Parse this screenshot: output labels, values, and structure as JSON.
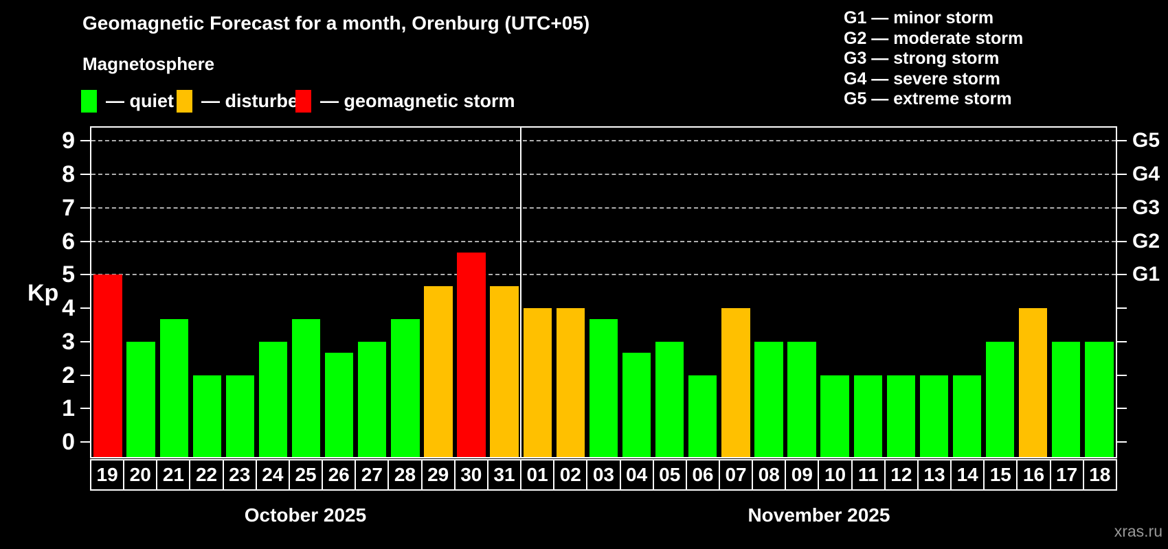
{
  "title": "Geomagnetic Forecast for a month, Orenburg (UTC+05)",
  "subtitle": "Magnetosphere",
  "legend": [
    {
      "key": "quiet",
      "label": "— quiet",
      "color": "#00ff00"
    },
    {
      "key": "disturbed",
      "label": "— disturbed",
      "color": "#ffc000"
    },
    {
      "key": "storm",
      "label": "— geomagnetic storm",
      "color": "#ff0000"
    }
  ],
  "storm_scale_legend": [
    "G1 — minor storm",
    "G2 — moderate storm",
    "G3 — strong storm",
    "G4 — severe storm",
    "G5 — extreme storm"
  ],
  "watermark": "xras.ru",
  "chart_data": {
    "type": "bar",
    "title": "Geomagnetic Forecast for a month, Orenburg (UTC+05)",
    "ylabel": "Kp",
    "ylim": [
      0,
      9
    ],
    "grid": "dashed horizontal at G-storm levels",
    "legend_position": "top",
    "y_tick_labels": [
      "0",
      "1",
      "2",
      "3",
      "4",
      "5",
      "6",
      "7",
      "8",
      "9"
    ],
    "right_axis_labels": [
      {
        "label": "G1",
        "kp": 5
      },
      {
        "label": "G2",
        "kp": 6
      },
      {
        "label": "G3",
        "kp": 7
      },
      {
        "label": "G4",
        "kp": 8
      },
      {
        "label": "G5",
        "kp": 9
      }
    ],
    "gridlines_at": [
      5,
      6,
      7,
      8,
      9
    ],
    "colors": {
      "quiet": "#00ff00",
      "disturbed": "#ffc000",
      "storm": "#ff0000"
    },
    "months": [
      {
        "label": "October 2025",
        "days": 13
      },
      {
        "label": "November 2025",
        "days": 18
      }
    ],
    "bars": [
      {
        "month": "October 2025",
        "day": "19",
        "kp": 5.0,
        "level": "storm"
      },
      {
        "month": "October 2025",
        "day": "20",
        "kp": 3.0,
        "level": "quiet"
      },
      {
        "month": "October 2025",
        "day": "21",
        "kp": 3.67,
        "level": "quiet"
      },
      {
        "month": "October 2025",
        "day": "22",
        "kp": 2.0,
        "level": "quiet"
      },
      {
        "month": "October 2025",
        "day": "23",
        "kp": 2.0,
        "level": "quiet"
      },
      {
        "month": "October 2025",
        "day": "24",
        "kp": 3.0,
        "level": "quiet"
      },
      {
        "month": "October 2025",
        "day": "25",
        "kp": 3.67,
        "level": "quiet"
      },
      {
        "month": "October 2025",
        "day": "26",
        "kp": 2.67,
        "level": "quiet"
      },
      {
        "month": "October 2025",
        "day": "27",
        "kp": 3.0,
        "level": "quiet"
      },
      {
        "month": "October 2025",
        "day": "28",
        "kp": 3.67,
        "level": "quiet"
      },
      {
        "month": "October 2025",
        "day": "29",
        "kp": 4.67,
        "level": "disturbed"
      },
      {
        "month": "October 2025",
        "day": "30",
        "kp": 5.67,
        "level": "storm"
      },
      {
        "month": "October 2025",
        "day": "31",
        "kp": 4.67,
        "level": "disturbed"
      },
      {
        "month": "November 2025",
        "day": "01",
        "kp": 4.0,
        "level": "disturbed"
      },
      {
        "month": "November 2025",
        "day": "02",
        "kp": 4.0,
        "level": "disturbed"
      },
      {
        "month": "November 2025",
        "day": "03",
        "kp": 3.67,
        "level": "quiet"
      },
      {
        "month": "November 2025",
        "day": "04",
        "kp": 2.67,
        "level": "quiet"
      },
      {
        "month": "November 2025",
        "day": "05",
        "kp": 3.0,
        "level": "quiet"
      },
      {
        "month": "November 2025",
        "day": "06",
        "kp": 2.0,
        "level": "quiet"
      },
      {
        "month": "November 2025",
        "day": "07",
        "kp": 4.0,
        "level": "disturbed"
      },
      {
        "month": "November 2025",
        "day": "08",
        "kp": 3.0,
        "level": "quiet"
      },
      {
        "month": "November 2025",
        "day": "09",
        "kp": 3.0,
        "level": "quiet"
      },
      {
        "month": "November 2025",
        "day": "10",
        "kp": 2.0,
        "level": "quiet"
      },
      {
        "month": "November 2025",
        "day": "11",
        "kp": 2.0,
        "level": "quiet"
      },
      {
        "month": "November 2025",
        "day": "12",
        "kp": 2.0,
        "level": "quiet"
      },
      {
        "month": "November 2025",
        "day": "13",
        "kp": 2.0,
        "level": "quiet"
      },
      {
        "month": "November 2025",
        "day": "14",
        "kp": 2.0,
        "level": "quiet"
      },
      {
        "month": "November 2025",
        "day": "15",
        "kp": 3.0,
        "level": "quiet"
      },
      {
        "month": "November 2025",
        "day": "16",
        "kp": 4.0,
        "level": "disturbed"
      },
      {
        "month": "November 2025",
        "day": "17",
        "kp": 3.0,
        "level": "quiet"
      },
      {
        "month": "November 2025",
        "day": "18",
        "kp": 3.0,
        "level": "quiet"
      }
    ]
  }
}
